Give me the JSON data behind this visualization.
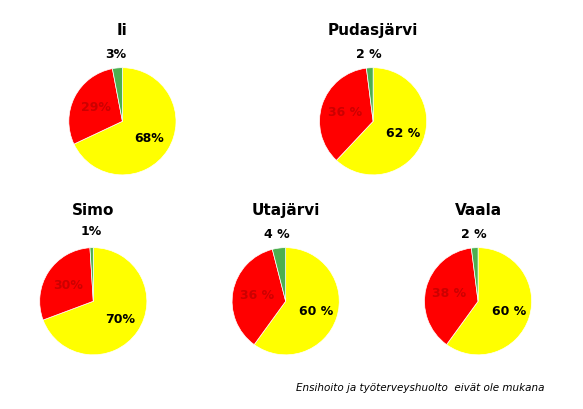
{
  "charts": [
    {
      "title": "Ii",
      "values": [
        68,
        29,
        3
      ],
      "labels": [
        "68%",
        "29%",
        "3%"
      ],
      "colors": [
        "#FFFF00",
        "#FF0000",
        "#4CAF50"
      ],
      "label_colors": [
        "#000000",
        "#CC0000",
        "#000000"
      ],
      "label_radii": [
        0.6,
        0.55,
        1.25
      ]
    },
    {
      "title": "Pudasjärvi",
      "values": [
        62,
        36,
        2
      ],
      "labels": [
        "62 %",
        "36 %",
        "2 %"
      ],
      "colors": [
        "#FFFF00",
        "#FF0000",
        "#4CAF50"
      ],
      "label_colors": [
        "#000000",
        "#CC0000",
        "#000000"
      ],
      "label_radii": [
        0.6,
        0.55,
        1.25
      ]
    },
    {
      "title": "Simo",
      "values": [
        70,
        30,
        1
      ],
      "labels": [
        "70%",
        "30%",
        "1%"
      ],
      "colors": [
        "#FFFF00",
        "#FF0000",
        "#4CAF50"
      ],
      "label_colors": [
        "#000000",
        "#CC0000",
        "#000000"
      ],
      "label_radii": [
        0.6,
        0.55,
        1.3
      ]
    },
    {
      "title": "Utajärvi",
      "values": [
        60,
        36,
        4
      ],
      "labels": [
        "60 %",
        "36 %",
        "4 %"
      ],
      "colors": [
        "#FFFF00",
        "#FF0000",
        "#4CAF50"
      ],
      "label_colors": [
        "#000000",
        "#CC0000",
        "#000000"
      ],
      "label_radii": [
        0.6,
        0.55,
        1.25
      ]
    },
    {
      "title": "Vaala",
      "values": [
        60,
        38,
        2
      ],
      "labels": [
        "60 %",
        "38 %",
        "2 %"
      ],
      "colors": [
        "#FFFF00",
        "#FF0000",
        "#4CAF50"
      ],
      "label_colors": [
        "#000000",
        "#CC0000",
        "#000000"
      ],
      "label_radii": [
        0.6,
        0.55,
        1.25
      ]
    }
  ],
  "footnote": "Ensihoito ja työterveyshuolto  eivät ole mukana",
  "background_color": "#FFFFFF",
  "label_fontsize": 9,
  "title_fontsize": 11
}
